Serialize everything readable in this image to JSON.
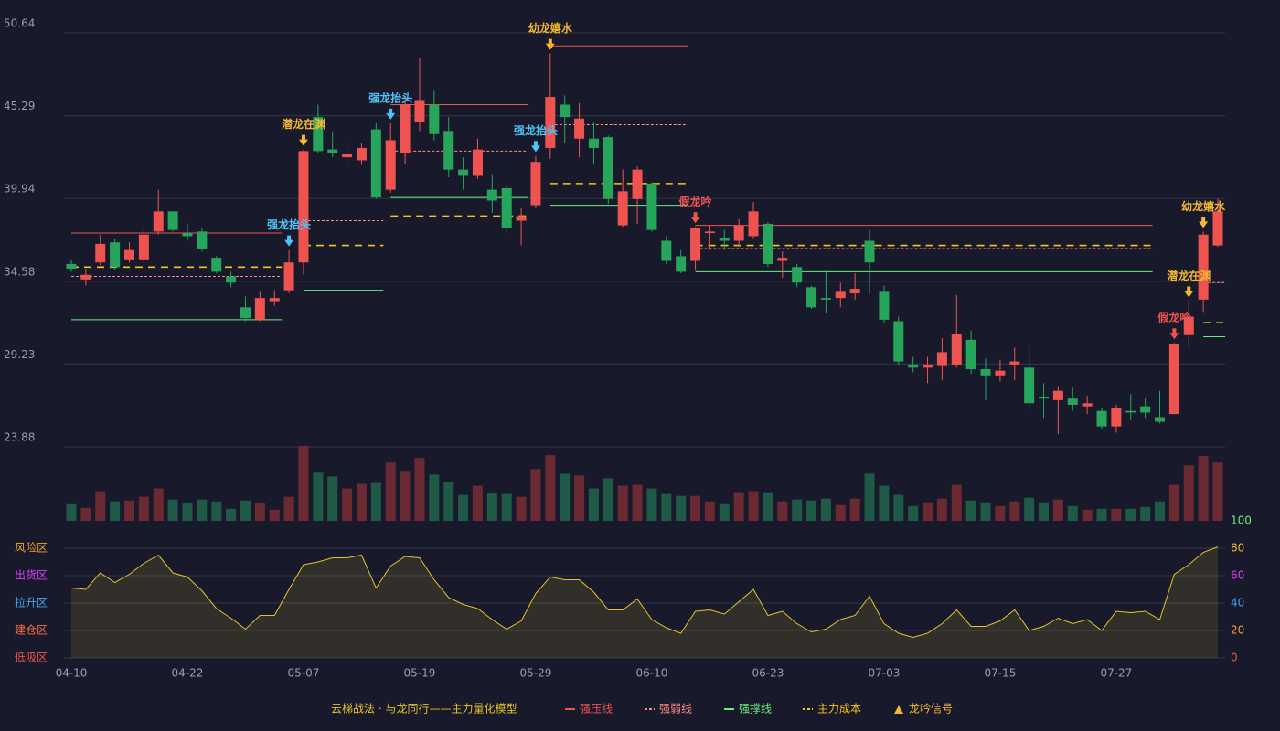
{
  "chart_data": [
    {
      "type": "candlestick",
      "categories": [
        "04-10",
        null,
        null,
        null,
        null,
        null,
        null,
        null,
        "04-22",
        null,
        null,
        null,
        null,
        null,
        null,
        null,
        "05-07",
        null,
        null,
        null,
        null,
        null,
        null,
        null,
        "05-19",
        null,
        null,
        null,
        null,
        null,
        null,
        null,
        "05-29",
        null,
        null,
        null,
        null,
        null,
        null,
        null,
        "06-10",
        null,
        null,
        null,
        null,
        null,
        null,
        null,
        "06-23",
        null,
        null,
        null,
        null,
        null,
        null,
        null,
        "07-03",
        null,
        null,
        null,
        null,
        null,
        null,
        null,
        "07-15",
        null,
        null,
        null,
        null,
        null,
        null,
        null,
        "07-27",
        null,
        null,
        null,
        null,
        null,
        null,
        null
      ],
      "open": [
        35.7,
        34.7,
        35.8,
        37.1,
        36.0,
        36.0,
        37.8,
        39.1,
        37.7,
        37.8,
        36.1,
        34.9,
        32.9,
        32.1,
        33.3,
        34.0,
        35.8,
        45.2,
        43.1,
        42.6,
        42.4,
        44.4,
        40.5,
        42.9,
        44.9,
        46.0,
        44.3,
        41.8,
        41.4,
        40.5,
        40.6,
        38.5,
        39.5,
        43.2,
        46.0,
        43.8,
        43.8,
        43.9,
        38.2,
        39.9,
        40.9,
        37.2,
        36.2,
        35.9,
        37.7,
        37.4,
        37.2,
        37.5,
        38.3,
        35.9,
        35.5,
        34.2,
        33.5,
        33.5,
        33.8,
        37.2,
        33.9,
        32.0,
        29.2,
        29.0,
        29.1,
        29.2,
        30.8,
        28.9,
        28.5,
        29.2,
        29.0,
        27.1,
        26.9,
        27.0,
        26.5,
        26.2,
        25.2,
        26.2,
        26.5,
        25.8,
        26.0,
        31.1,
        33.4,
        36.9
      ],
      "high": [
        36.0,
        35.4,
        37.6,
        37.3,
        37.1,
        37.9,
        40.5,
        39.1,
        38.3,
        38.0,
        36.2,
        35.2,
        33.6,
        33.9,
        34.0,
        36.6,
        43.1,
        46.0,
        44.2,
        43.5,
        43.5,
        44.8,
        44.8,
        46.5,
        49.0,
        46.9,
        45.2,
        42.6,
        43.8,
        41.5,
        40.8,
        39.3,
        42.7,
        49.3,
        46.6,
        46.1,
        44.9,
        44.0,
        41.8,
        42.0,
        41.0,
        37.5,
        36.6,
        38.1,
        38.2,
        37.9,
        38.6,
        39.7,
        38.4,
        36.5,
        35.7,
        34.3,
        35.3,
        34.5,
        35.1,
        37.9,
        34.3,
        32.3,
        29.7,
        29.7,
        30.9,
        33.7,
        31.4,
        29.6,
        29.5,
        30.3,
        30.4,
        28.0,
        27.8,
        27.7,
        27.2,
        26.4,
        26.6,
        27.3,
        27.0,
        27.5,
        30.6,
        33.3,
        37.8,
        39.9
      ],
      "low": [
        35.2,
        34.3,
        35.6,
        35.3,
        35.8,
        35.8,
        37.6,
        37.8,
        37.2,
        36.5,
        35.1,
        34.2,
        32.0,
        32.0,
        33.0,
        33.8,
        35.0,
        42.9,
        42.6,
        41.9,
        42.1,
        39.9,
        40.3,
        42.2,
        44.3,
        43.7,
        41.3,
        40.5,
        41.2,
        39.0,
        37.7,
        36.9,
        39.3,
        42.5,
        43.5,
        42.6,
        42.2,
        39.6,
        38.1,
        38.3,
        37.8,
        35.7,
        35.1,
        35.3,
        36.6,
        36.6,
        36.8,
        37.3,
        35.5,
        34.8,
        34.2,
        32.8,
        32.5,
        32.9,
        33.4,
        33.8,
        31.9,
        29.2,
        28.7,
        28.0,
        28.2,
        29.0,
        28.6,
        26.9,
        28.1,
        28.2,
        26.3,
        25.7,
        24.7,
        26.2,
        26.0,
        25.0,
        24.8,
        25.6,
        25.7,
        25.4,
        26.0,
        30.3,
        32.6,
        36.8
      ],
      "close": [
        35.4,
        35.0,
        37.0,
        35.5,
        36.6,
        37.6,
        39.1,
        37.9,
        37.5,
        36.7,
        35.2,
        34.5,
        32.2,
        33.5,
        33.5,
        35.8,
        43.0,
        43.0,
        42.9,
        42.8,
        43.2,
        40.0,
        43.7,
        46.0,
        46.3,
        44.1,
        41.8,
        41.4,
        43.1,
        39.8,
        38.0,
        38.8,
        42.3,
        46.5,
        45.2,
        45.1,
        43.2,
        39.9,
        40.4,
        41.8,
        37.9,
        35.9,
        35.2,
        38.0,
        37.8,
        37.2,
        38.2,
        39.1,
        35.7,
        36.1,
        34.5,
        32.9,
        33.4,
        33.9,
        34.1,
        35.8,
        32.1,
        29.4,
        29.0,
        29.2,
        30.0,
        31.2,
        28.9,
        28.5,
        28.8,
        29.4,
        26.7,
        27.0,
        27.5,
        26.6,
        26.7,
        25.2,
        26.4,
        26.1,
        26.1,
        25.5,
        30.5,
        32.3,
        37.6,
        39.1
      ],
      "up_color": "#ef5350",
      "down_color": "#26a65b",
      "ylim": [
        23.88,
        50.64
      ],
      "yticks": [
        23.88,
        29.23,
        34.58,
        39.94,
        45.29,
        50.64
      ],
      "grid": true,
      "levels": [
        {
          "name": "强压线",
          "color": "#ef5350",
          "dash": false,
          "segments": [
            {
              "start": 0,
              "end": 14,
              "value": 37.7
            },
            {
              "start": 22,
              "end": 31,
              "value": 46.0
            },
            {
              "start": 33,
              "end": 42,
              "value": 49.8
            },
            {
              "start": 43,
              "end": 74,
              "value": 38.2
            }
          ]
        },
        {
          "name": "强弱线",
          "color": "#ff8a80",
          "dash": true,
          "segments": [
            {
              "start": 0,
              "end": 14,
              "value": 34.9
            },
            {
              "start": 16,
              "end": 21,
              "value": 38.5
            },
            {
              "start": 22,
              "end": 31,
              "value": 43.0
            },
            {
              "start": 33,
              "end": 42,
              "value": 44.7
            },
            {
              "start": 43,
              "end": 74,
              "value": 36.7
            },
            {
              "start": 78,
              "end": 79,
              "value": 34.5
            }
          ]
        },
        {
          "name": "强撑线",
          "color": "#69f07a",
          "dash": false,
          "segments": [
            {
              "start": 0,
              "end": 14,
              "value": 32.1
            },
            {
              "start": 16,
              "end": 21,
              "value": 34.0
            },
            {
              "start": 22,
              "end": 31,
              "value": 40.0
            },
            {
              "start": 33,
              "end": 42,
              "value": 39.5
            },
            {
              "start": 43,
              "end": 74,
              "value": 35.2
            },
            {
              "start": 78,
              "end": 79,
              "value": 31.0
            }
          ]
        },
        {
          "name": "主力成本",
          "color": "#f5c518",
          "dash": true,
          "segments": [
            {
              "start": 0,
              "end": 14,
              "value": 35.5
            },
            {
              "start": 16,
              "end": 21,
              "value": 36.9
            },
            {
              "start": 22,
              "end": 31,
              "value": 38.8
            },
            {
              "start": 33,
              "end": 42,
              "value": 40.9
            },
            {
              "start": 43,
              "end": 74,
              "value": 36.9
            },
            {
              "start": 78,
              "end": 79,
              "value": 31.9
            }
          ]
        }
      ],
      "signal_legend": {
        "name": "龙吟信号",
        "color": "#f5b731"
      },
      "signals": [
        {
          "text": "强龙抬头",
          "index": 15,
          "color": "#4fc3f7"
        },
        {
          "text": "潜龙在渊",
          "index": 16,
          "color": "#f5b731"
        },
        {
          "text": "强龙抬头",
          "index": 22,
          "color": "#4fc3f7"
        },
        {
          "text": "强龙抬头",
          "index": 32,
          "color": "#4fc3f7"
        },
        {
          "text": "幼龙嬉水",
          "index": 33,
          "color": "#f5b731"
        },
        {
          "text": "假龙吟",
          "index": 43,
          "color": "#ef5350"
        },
        {
          "text": "假龙吟",
          "index": 76,
          "color": "#ef5350"
        },
        {
          "text": "潜龙在渊",
          "index": 77,
          "color": "#f5b731"
        },
        {
          "text": "幼龙嬉水",
          "index": 78,
          "color": "#f5b731"
        }
      ],
      "title": "云梯战法 · 与龙同行——主力量化模型"
    },
    {
      "type": "bar",
      "values": [
        18,
        14,
        32,
        21,
        22,
        26,
        35,
        23,
        19,
        23,
        21,
        13,
        22,
        19,
        12,
        26,
        81,
        52,
        48,
        35,
        40,
        41,
        63,
        53,
        68,
        50,
        42,
        28,
        38,
        30,
        29,
        26,
        56,
        71,
        51,
        49,
        35,
        46,
        38,
        39,
        35,
        29,
        27,
        27,
        21,
        18,
        31,
        32,
        31,
        21,
        23,
        22,
        24,
        17,
        24,
        51,
        38,
        28,
        16,
        20,
        24,
        39,
        22,
        20,
        16,
        21,
        25,
        20,
        23,
        16,
        12,
        13,
        13,
        13,
        15,
        21,
        39,
        60,
        70,
        63
      ],
      "up_color": "#6b2a32",
      "down_color": "#1f5a46"
    },
    {
      "type": "area",
      "values": [
        51,
        50,
        62,
        55,
        61,
        69,
        75,
        62,
        59,
        49,
        36,
        29,
        21,
        31,
        31,
        50,
        68,
        70,
        73,
        73,
        75,
        51,
        67,
        74,
        73,
        57,
        44,
        39,
        36,
        28,
        21,
        27,
        47,
        59,
        57,
        57,
        48,
        35,
        35,
        43,
        28,
        22,
        18,
        34,
        35,
        32,
        41,
        50,
        31,
        34,
        25,
        19,
        21,
        28,
        31,
        45,
        25,
        18,
        15,
        18,
        25,
        35,
        23,
        23,
        27,
        35,
        20,
        23,
        29,
        25,
        28,
        20,
        34,
        33,
        34,
        28,
        61,
        68,
        77,
        81
      ],
      "color": "#e6c229",
      "ylim": [
        0,
        100
      ],
      "yticks": [
        0,
        20,
        40,
        60,
        80,
        100
      ],
      "ytick_colors": [
        "#ef5350",
        "#ff9a3c",
        "#42a5f5",
        "#e040fb",
        "#f5b731",
        "#69f07a"
      ],
      "zones": [
        {
          "value": 80,
          "label": "风险区",
          "color": "#f5a623"
        },
        {
          "value": 60,
          "label": "出货区",
          "color": "#e040fb"
        },
        {
          "value": 40,
          "label": "拉升区",
          "color": "#42a5f5"
        },
        {
          "value": 20,
          "label": "建仓区",
          "color": "#ff7043"
        },
        {
          "value": 0,
          "label": "低吸区",
          "color": "#ef5350"
        }
      ]
    }
  ]
}
